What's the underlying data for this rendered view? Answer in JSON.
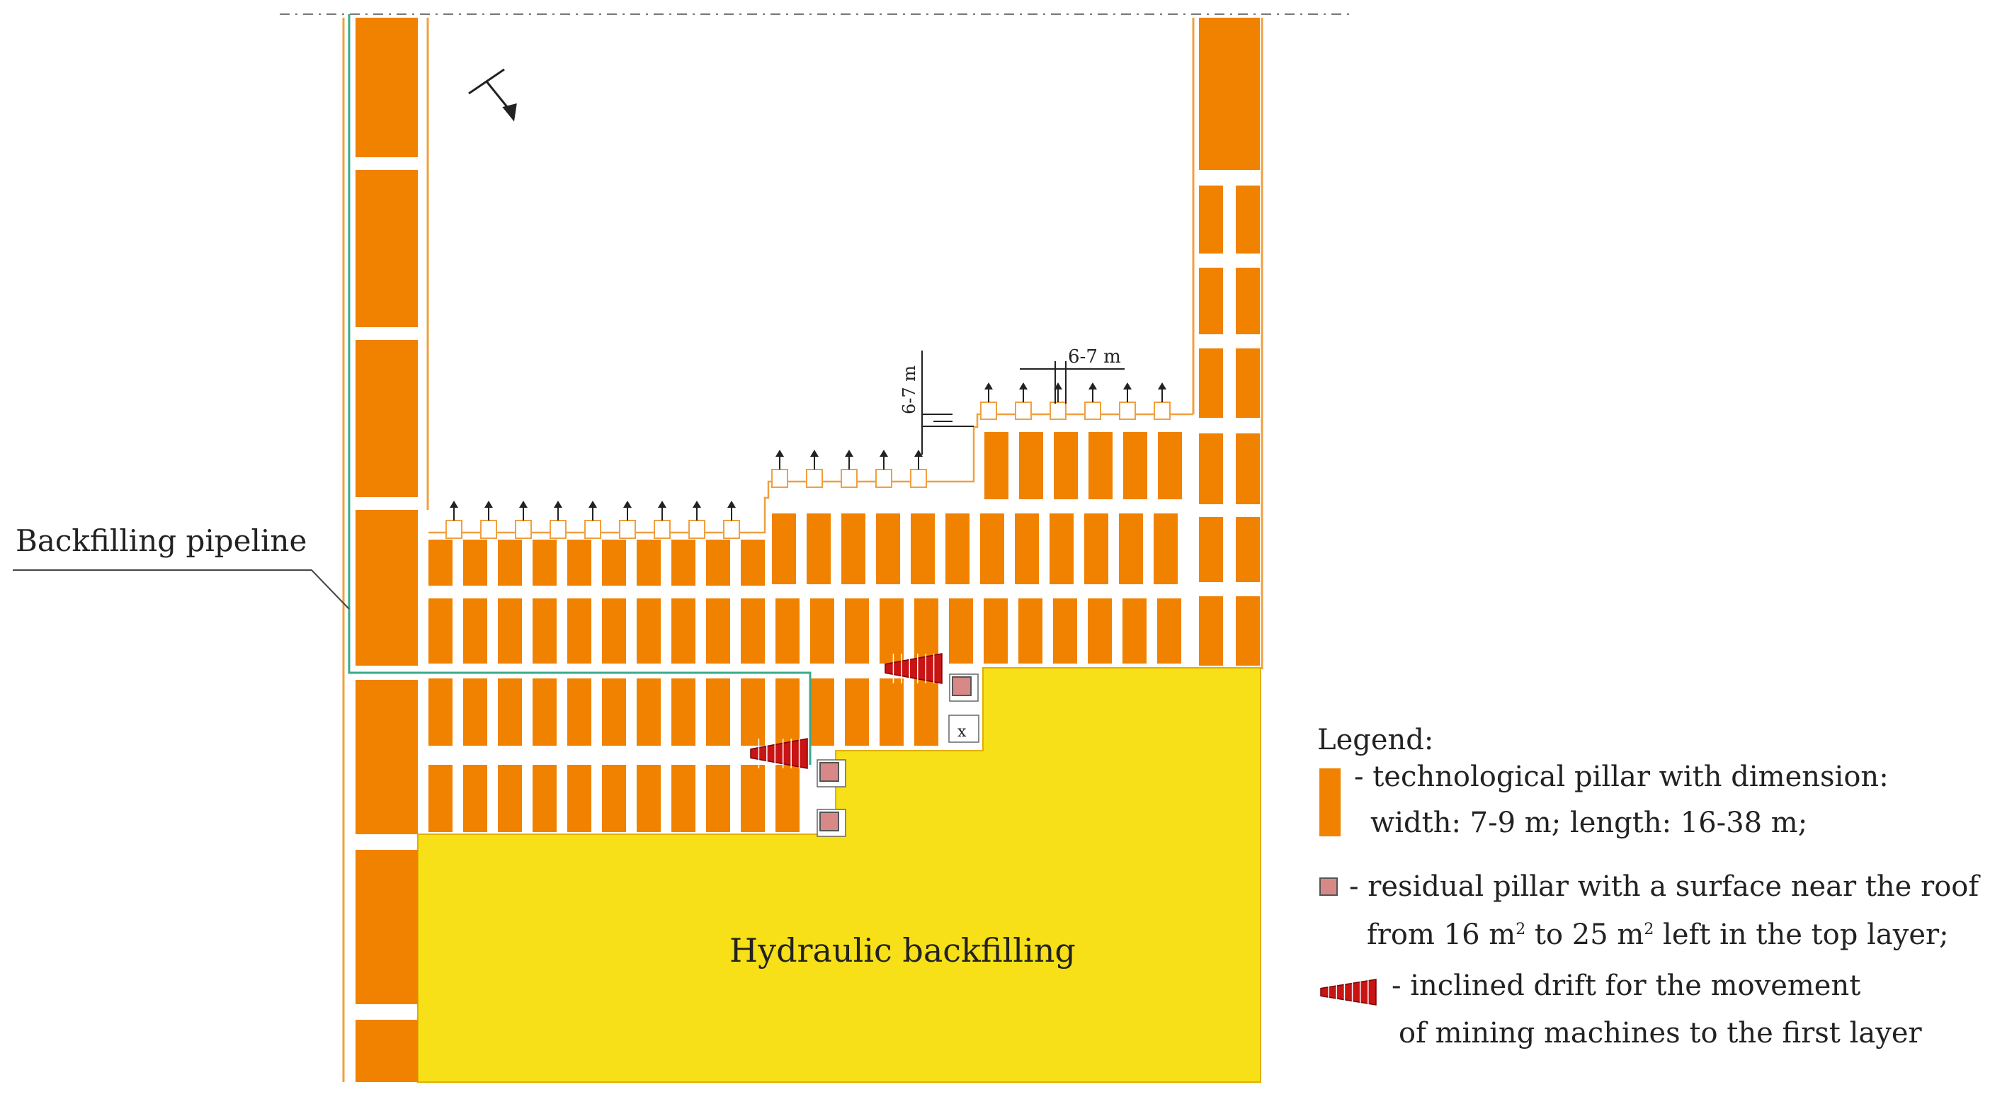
{
  "labels": {
    "backfilling_pipeline": "Backfilling pipeline",
    "hydraulic_backfilling": "Hydraulic backfilling",
    "dimension_vertical": "6-7 m",
    "dimension_horizontal": "6-7 m"
  },
  "legend": {
    "title": "Legend:",
    "technological_pillar": {
      "line1": "- technological pillar with dimension:",
      "line2": "width: 7-9 m;  length: 16-38 m;"
    },
    "residual_pillar": {
      "line1": "- residual pillar with a surface near the roof",
      "line2_a": "from 16 m",
      "line2_b": " to 25 m",
      "line2_c": " left in the top layer;",
      "superscript": "2"
    },
    "inclined_drift": {
      "line1": "- inclined drift for the movement",
      "line2": "of mining machines to the first layer"
    }
  },
  "colors": {
    "pillar": "#f08200",
    "backfill": "#f8e018",
    "residual": "#d98888",
    "drift": "#c81414",
    "pipeline": "#3aaa8a",
    "outline": "#f0a040"
  }
}
